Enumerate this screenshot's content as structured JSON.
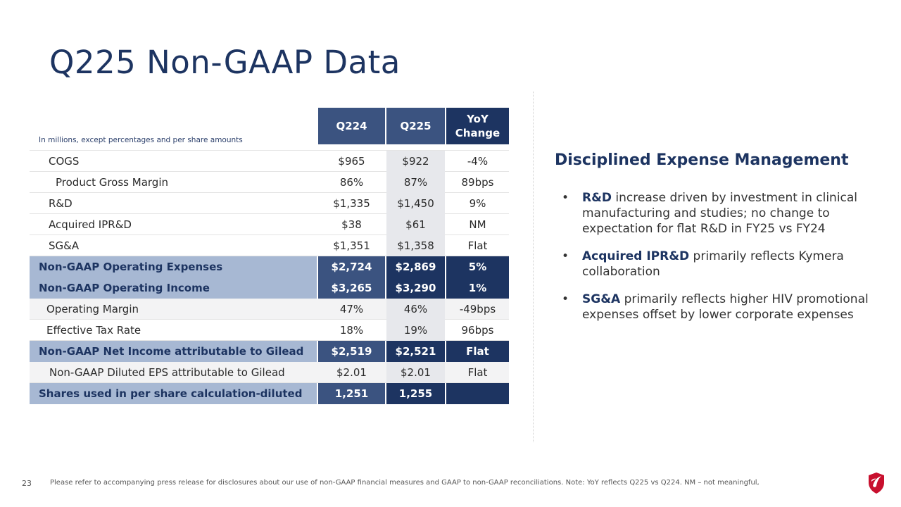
{
  "title": "Q225 Non-GAAP Data",
  "table": {
    "note": "In millions, except percentages and per share amounts",
    "headers": [
      "Q224",
      "Q225",
      "YoY\nChange"
    ],
    "rows": [
      {
        "label": "COGS",
        "v1": "$965",
        "v2": "$922",
        "v3": "-4%"
      },
      {
        "label": "Product Gross Margin",
        "v1": "86%",
        "v2": "87%",
        "v3": "89bps"
      },
      {
        "label": "R&D",
        "v1": "$1,335",
        "v2": "$1,450",
        "v3": "9%"
      },
      {
        "label": "Acquired IPR&D",
        "v1": "$38",
        "v2": "$61",
        "v3": "NM"
      },
      {
        "label": "SG&A",
        "v1": "$1,351",
        "v2": "$1,358",
        "v3": "Flat"
      },
      {
        "label": "Non-GAAP Operating Expenses",
        "v1": "$2,724",
        "v2": "$2,869",
        "v3": "5%"
      },
      {
        "label": "Non-GAAP Operating Income",
        "v1": "$3,265",
        "v2": "$3,290",
        "v3": "1%"
      },
      {
        "label": "Operating Margin",
        "v1": "47%",
        "v2": "46%",
        "v3": "-49bps"
      },
      {
        "label": "Effective Tax Rate",
        "v1": "18%",
        "v2": "19%",
        "v3": "96bps"
      },
      {
        "label": "Non-GAAP Net Income attributable to Gilead",
        "v1": "$2,519",
        "v2": "$2,521",
        "v3": "Flat"
      },
      {
        "label": "Non-GAAP Diluted EPS attributable to Gilead",
        "v1": "$2.01",
        "v2": "$2.01",
        "v3": "Flat"
      },
      {
        "label": "Shares used in per share calculation-diluted",
        "v1": "1,251",
        "v2": "1,255",
        "v3": ""
      }
    ]
  },
  "side": {
    "title": "Disciplined Expense Management",
    "bullet_marker": "•",
    "bullets": [
      {
        "bold": "R&D",
        "text": " increase driven by investment in clinical manufacturing and studies; no change to expectation for flat R&D in FY25 vs FY24"
      },
      {
        "bold": "Acquired IPR&D",
        "text": " primarily reflects Kymera collaboration"
      },
      {
        "bold": "SG&A",
        "text": " primarily reflects higher HIV promotional expenses offset by lower corporate expenses"
      }
    ]
  },
  "footer": {
    "page": "23",
    "text": "Please refer to accompanying press release for disclosures about our use of non-GAAP financial measures and GAAP to non-GAAP reconciliations. Note: YoY reflects Q225 vs Q224. NM – not meaningful,"
  },
  "colors": {
    "navy": "#1d3461",
    "mid_blue": "#3b5380",
    "light_blue": "#a7b8d3",
    "logo_red": "#c8102e"
  },
  "logo_icon": "gilead-shield-icon"
}
